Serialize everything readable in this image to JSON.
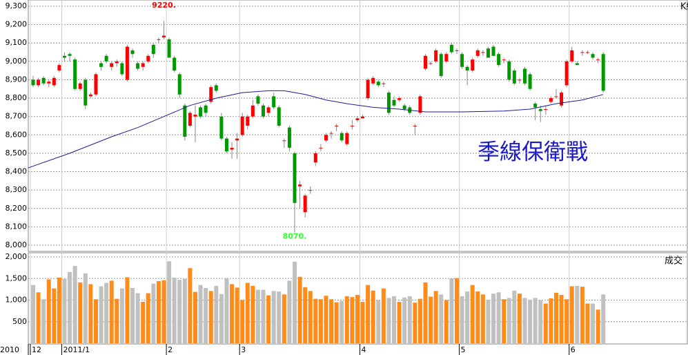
{
  "chart_data": {
    "type": "candlestick",
    "corner_label": "K線",
    "year_label": "2010",
    "note": "季線保衛戰",
    "up_color": "#ff0000",
    "down_color": "#009900",
    "grid": true,
    "ylim": [
      8000,
      9300
    ],
    "yticks": [
      {
        "value": 8000,
        "label": "8,000"
      },
      {
        "value": 8100,
        "label": "8,100"
      },
      {
        "value": 8200,
        "label": "8,200"
      },
      {
        "value": 8300,
        "label": "8,300"
      },
      {
        "value": 8400,
        "label": "8,400"
      },
      {
        "value": 8500,
        "label": "8,500"
      },
      {
        "value": 8600,
        "label": "8,600"
      },
      {
        "value": 8700,
        "label": "8,700"
      },
      {
        "value": 8800,
        "label": "8,800"
      },
      {
        "value": 8900,
        "label": "8,900"
      },
      {
        "value": 9000,
        "label": "9,000"
      },
      {
        "value": 9100,
        "label": "9,100"
      },
      {
        "value": 9200,
        "label": "9,200"
      },
      {
        "value": 9300,
        "label": "9,300"
      }
    ],
    "xticks": [
      {
        "value": 0,
        "label": "12"
      },
      {
        "value": 6,
        "label": "2011/1"
      },
      {
        "value": 26,
        "label": "2"
      },
      {
        "value": 40,
        "label": "3"
      },
      {
        "value": 63,
        "label": "4"
      },
      {
        "value": 82,
        "label": "5"
      },
      {
        "value": 103,
        "label": "6"
      }
    ],
    "annotations": [
      {
        "text": "9220.",
        "x": 25,
        "y": 9220,
        "color": "#ff0000"
      },
      {
        "text": "8070.",
        "x": 50,
        "y": 8070,
        "color": "#33ff33"
      }
    ],
    "candles": [
      [
        8900,
        8920,
        8860,
        8870
      ],
      [
        8870,
        8910,
        8860,
        8900
      ],
      [
        8910,
        8920,
        8870,
        8880
      ],
      [
        8880,
        8900,
        8860,
        8890
      ],
      [
        8870,
        8920,
        8860,
        8910
      ],
      [
        8950,
        8990,
        8940,
        8980
      ],
      [
        9030,
        9050,
        9000,
        9020
      ],
      [
        9040,
        9050,
        9000,
        9030
      ],
      [
        9010,
        9020,
        8840,
        8850
      ],
      [
        8850,
        8890,
        8840,
        8880
      ],
      [
        8900,
        8910,
        8740,
        8760
      ],
      [
        8810,
        8830,
        8800,
        8820
      ],
      [
        8820,
        8940,
        8810,
        8930
      ],
      [
        8990,
        9000,
        8950,
        8970
      ],
      [
        9030,
        9040,
        8990,
        9000
      ],
      [
        8970,
        9000,
        8950,
        8990
      ],
      [
        8990,
        9010,
        8970,
        9000
      ],
      [
        8990,
        9000,
        8920,
        8930
      ],
      [
        8900,
        9090,
        8890,
        9080
      ],
      [
        9060,
        9070,
        9020,
        9040
      ],
      [
        8990,
        9000,
        8950,
        8960
      ],
      [
        8970,
        9000,
        8950,
        8990
      ],
      [
        9000,
        9040,
        8990,
        9030
      ],
      [
        9090,
        9100,
        9020,
        9040
      ],
      [
        9120,
        9130,
        9100,
        9120
      ],
      [
        9130,
        9220,
        9120,
        9140
      ],
      [
        9120,
        9130,
        9020,
        9020
      ],
      [
        9020,
        9030,
        8940,
        8950
      ],
      [
        8930,
        8940,
        8800,
        8820
      ],
      [
        8760,
        8770,
        8570,
        8590
      ],
      [
        8650,
        8730,
        8640,
        8720
      ],
      [
        8700,
        8760,
        8560,
        8710
      ],
      [
        8750,
        8760,
        8690,
        8700
      ],
      [
        8760,
        8770,
        8700,
        8720
      ],
      [
        8780,
        8870,
        8770,
        8860
      ],
      [
        8870,
        8880,
        8830,
        8840
      ],
      [
        8700,
        8720,
        8570,
        8580
      ],
      [
        8580,
        8590,
        8500,
        8510
      ],
      [
        8520,
        8560,
        8470,
        8530
      ],
      [
        8570,
        8610,
        8470,
        8580
      ],
      [
        8600,
        8720,
        8590,
        8700
      ],
      [
        8650,
        8710,
        8630,
        8700
      ],
      [
        8700,
        8790,
        8690,
        8760
      ],
      [
        8810,
        8820,
        8760,
        8770
      ],
      [
        8760,
        8770,
        8690,
        8700
      ],
      [
        8720,
        8760,
        8700,
        8750
      ],
      [
        8810,
        8830,
        8740,
        8750
      ],
      [
        8750,
        8760,
        8640,
        8650
      ],
      [
        8570,
        8580,
        8530,
        8570
      ],
      [
        8640,
        8650,
        8510,
        8530
      ],
      [
        8500,
        8510,
        8070,
        8230
      ],
      [
        8320,
        8350,
        8200,
        8330
      ],
      [
        8180,
        8280,
        8150,
        8270
      ],
      [
        8300,
        8320,
        8280,
        8300
      ],
      [
        8450,
        8510,
        8430,
        8500
      ],
      [
        8530,
        8550,
        8510,
        8530
      ],
      [
        8570,
        8610,
        8560,
        8600
      ],
      [
        8610,
        8620,
        8580,
        8610
      ],
      [
        8650,
        8660,
        8620,
        8650
      ],
      [
        8610,
        8620,
        8560,
        8570
      ],
      [
        8550,
        8620,
        8540,
        8610
      ],
      [
        8650,
        8680,
        8630,
        8650
      ],
      [
        8680,
        8700,
        8670,
        8690
      ],
      [
        8690,
        8710,
        8690,
        8700
      ],
      [
        8800,
        8910,
        8790,
        8900
      ],
      [
        8880,
        8920,
        8870,
        8910
      ],
      [
        8890,
        8900,
        8860,
        8870
      ],
      [
        8880,
        8890,
        8860,
        8880
      ],
      [
        8830,
        8840,
        8710,
        8720
      ],
      [
        8790,
        8810,
        8750,
        8760
      ],
      [
        8790,
        8810,
        8780,
        8800
      ],
      [
        8760,
        8770,
        8730,
        8740
      ],
      [
        8750,
        8760,
        8710,
        8720
      ],
      [
        8650,
        8660,
        8600,
        8650
      ],
      [
        8720,
        8820,
        8710,
        8810
      ],
      [
        8960,
        9040,
        8950,
        9030
      ],
      [
        8990,
        9000,
        8980,
        8990
      ],
      [
        9000,
        9070,
        8990,
        9060
      ],
      [
        9040,
        9050,
        8910,
        8920
      ],
      [
        9000,
        9050,
        8990,
        9040
      ],
      [
        9090,
        9100,
        9040,
        9050
      ],
      [
        9060,
        9070,
        9040,
        9060
      ],
      [
        9040,
        9050,
        8960,
        8970
      ],
      [
        8970,
        8980,
        8870,
        8950
      ],
      [
        8950,
        9020,
        8940,
        9010
      ],
      [
        9030,
        9070,
        9020,
        9060
      ],
      [
        9050,
        9060,
        9030,
        9050
      ],
      [
        9070,
        9080,
        9020,
        9020
      ],
      [
        9080,
        9090,
        9030,
        9030
      ],
      [
        9040,
        9050,
        8970,
        8980
      ],
      [
        9010,
        9020,
        8990,
        9010
      ],
      [
        9000,
        9010,
        8890,
        8900
      ],
      [
        8950,
        8960,
        8870,
        8880
      ],
      [
        8900,
        8910,
        8880,
        8900
      ],
      [
        8960,
        8970,
        8870,
        8880
      ],
      [
        8930,
        8940,
        8840,
        8850
      ],
      [
        8770,
        8780,
        8680,
        8750
      ],
      [
        8740,
        8760,
        8670,
        8730
      ],
      [
        8740,
        8760,
        8710,
        8740
      ],
      [
        8780,
        8810,
        8770,
        8800
      ],
      [
        8810,
        8850,
        8800,
        8810
      ],
      [
        8760,
        8840,
        8750,
        8830
      ],
      [
        8870,
        9010,
        8860,
        9000
      ],
      [
        9000,
        9080,
        8990,
        9060
      ],
      [
        8990,
        9000,
        8980,
        8980
      ],
      [
        9050,
        9060,
        9030,
        9050
      ],
      [
        9050,
        9060,
        9040,
        9050
      ],
      [
        9040,
        9050,
        9010,
        9020
      ],
      [
        9010,
        9020,
        8990,
        9010
      ],
      [
        9040,
        9050,
        8830,
        8840
      ]
    ],
    "ma": {
      "color": "#1a1aa0",
      "x": [
        -1,
        7,
        15,
        20,
        25,
        30,
        35,
        40,
        45,
        48,
        52,
        56,
        60,
        65,
        70,
        75,
        82,
        90,
        95,
        100,
        105,
        109
      ],
      "values": [
        8420,
        8500,
        8590,
        8640,
        8700,
        8760,
        8800,
        8830,
        8840,
        8840,
        8820,
        8790,
        8770,
        8750,
        8740,
        8725,
        8725,
        8730,
        8740,
        8770,
        8790,
        8820
      ]
    },
    "volume": {
      "label": "成交",
      "up_color": "#ff8c1a",
      "down_color": "#c0c0c0",
      "ylim": [
        0,
        2000
      ],
      "yticks": [
        500,
        {
          "value": 1000,
          "label": "1,000"
        },
        {
          "value": 1500,
          "label": "1,500"
        },
        {
          "value": 2000,
          "label": "2,000"
        }
      ],
      "values": [
        1350,
        1180,
        1020,
        1480,
        1270,
        1520,
        1490,
        1650,
        1790,
        1410,
        1620,
        1370,
        1020,
        1320,
        1400,
        1450,
        1030,
        1270,
        1530,
        1280,
        1160,
        960,
        1160,
        1380,
        1440,
        1460,
        1900,
        1520,
        1470,
        1490,
        1740,
        1190,
        1350,
        1280,
        1210,
        1330,
        1140,
        1510,
        1370,
        1290,
        1000,
        1400,
        1330,
        1240,
        1240,
        1110,
        1210,
        1200,
        1130,
        1450,
        1890,
        1540,
        1300,
        1210,
        1030,
        1020,
        1100,
        1020,
        950,
        980,
        1090,
        1070,
        1120,
        960,
        1350,
        1220,
        1000,
        1270,
        1050,
        1090,
        960,
        1060,
        1090,
        940,
        1030,
        1410,
        1080,
        1210,
        1130,
        1000,
        1500,
        1510,
        1090,
        1200,
        1350,
        1200,
        1130,
        1010,
        1150,
        1180,
        1020,
        1050,
        1220,
        1150,
        1050,
        1010,
        1050,
        1000,
        920,
        1040,
        1170,
        1120,
        1020,
        1320,
        1330,
        1310,
        920,
        920,
        780,
        1130
      ]
    }
  }
}
